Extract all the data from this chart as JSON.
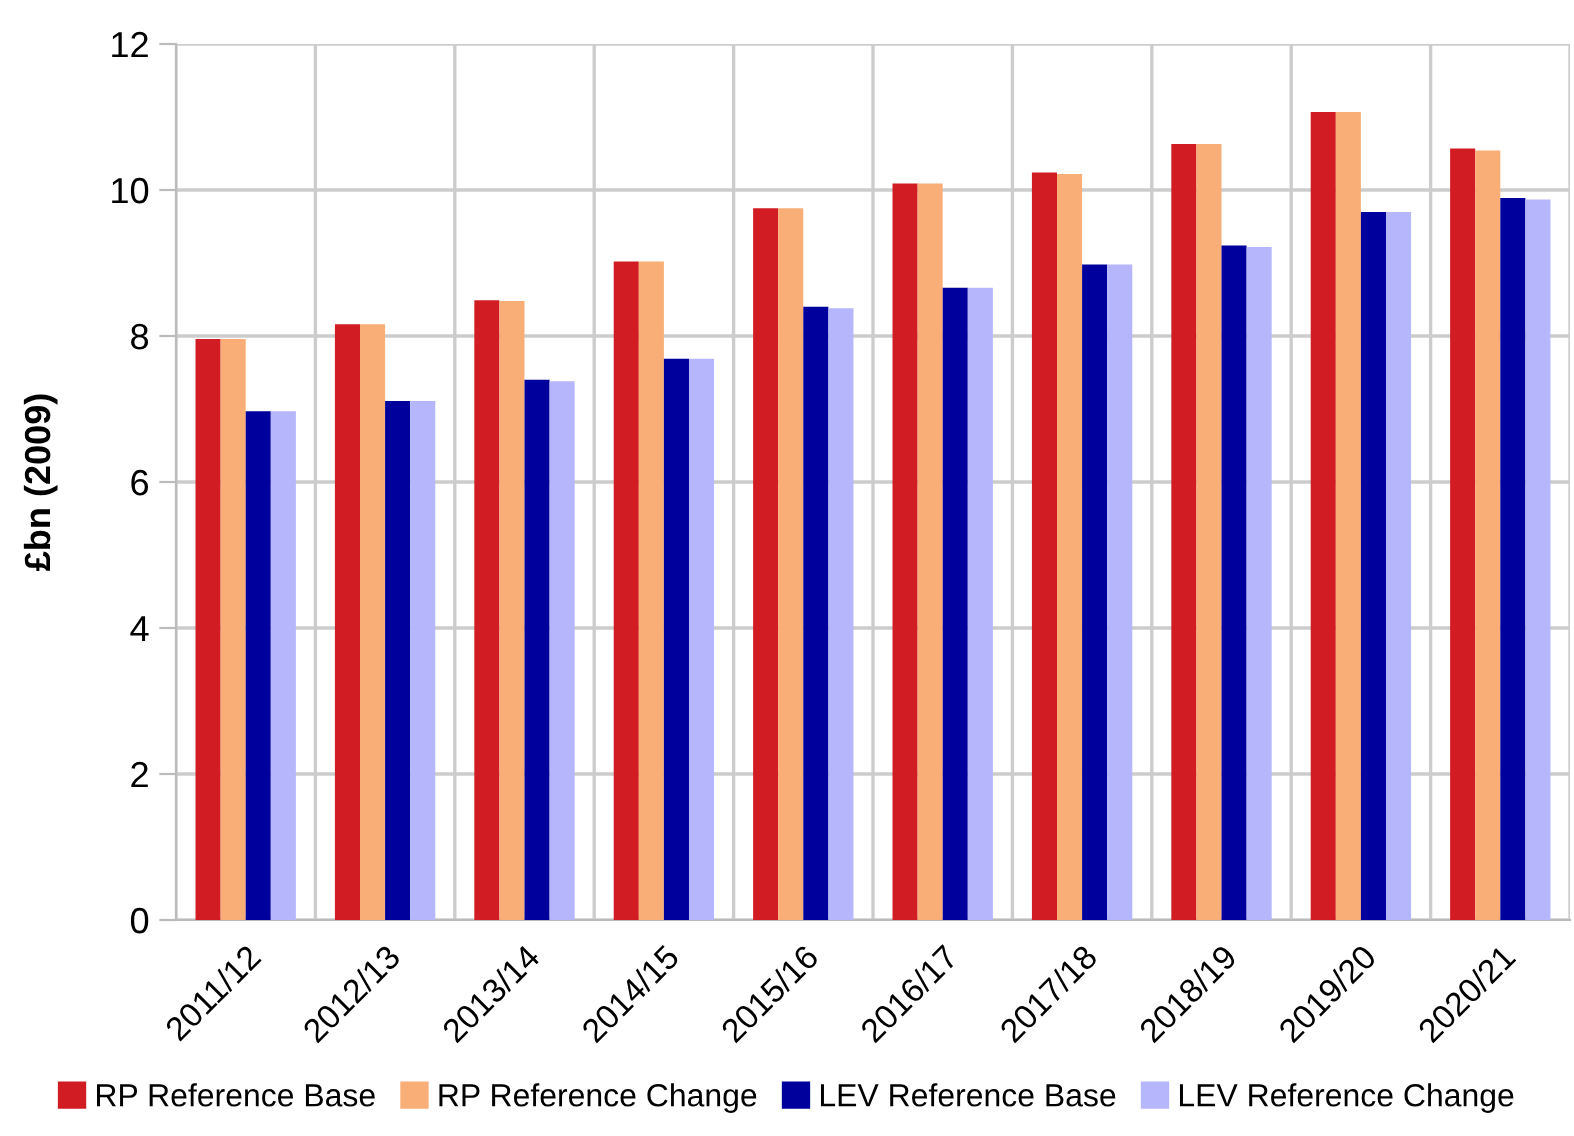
{
  "chart_data": {
    "type": "bar",
    "ylabel": "£bn (2009)",
    "categories": [
      "2011/12",
      "2012/13",
      "2013/14",
      "2014/15",
      "2015/16",
      "2016/17",
      "2017/18",
      "2018/19",
      "2019/20",
      "2020/21"
    ],
    "series": [
      {
        "name": "RP Reference Base",
        "color": "#d01c22",
        "values": [
          7.96,
          8.16,
          8.49,
          9.02,
          9.75,
          10.09,
          10.24,
          10.63,
          11.07,
          10.57
        ]
      },
      {
        "name": "RP Reference Change",
        "color": "#f9ae78",
        "values": [
          7.96,
          8.16,
          8.48,
          9.02,
          9.75,
          10.09,
          10.22,
          10.63,
          11.07,
          10.54
        ]
      },
      {
        "name": "LEV Reference Base",
        "color": "#00009c",
        "values": [
          6.97,
          7.11,
          7.4,
          7.69,
          8.4,
          8.66,
          8.98,
          9.24,
          9.7,
          9.89
        ]
      },
      {
        "name": "LEV Reference Change",
        "color": "#b6b6fc",
        "values": [
          6.97,
          7.11,
          7.38,
          7.69,
          8.38,
          8.66,
          8.98,
          9.22,
          9.7,
          9.87
        ]
      }
    ],
    "ylim": [
      0,
      12
    ],
    "yticks": [
      0,
      2,
      4,
      6,
      8,
      10,
      12
    ],
    "grid": true,
    "legend": "bottom"
  }
}
